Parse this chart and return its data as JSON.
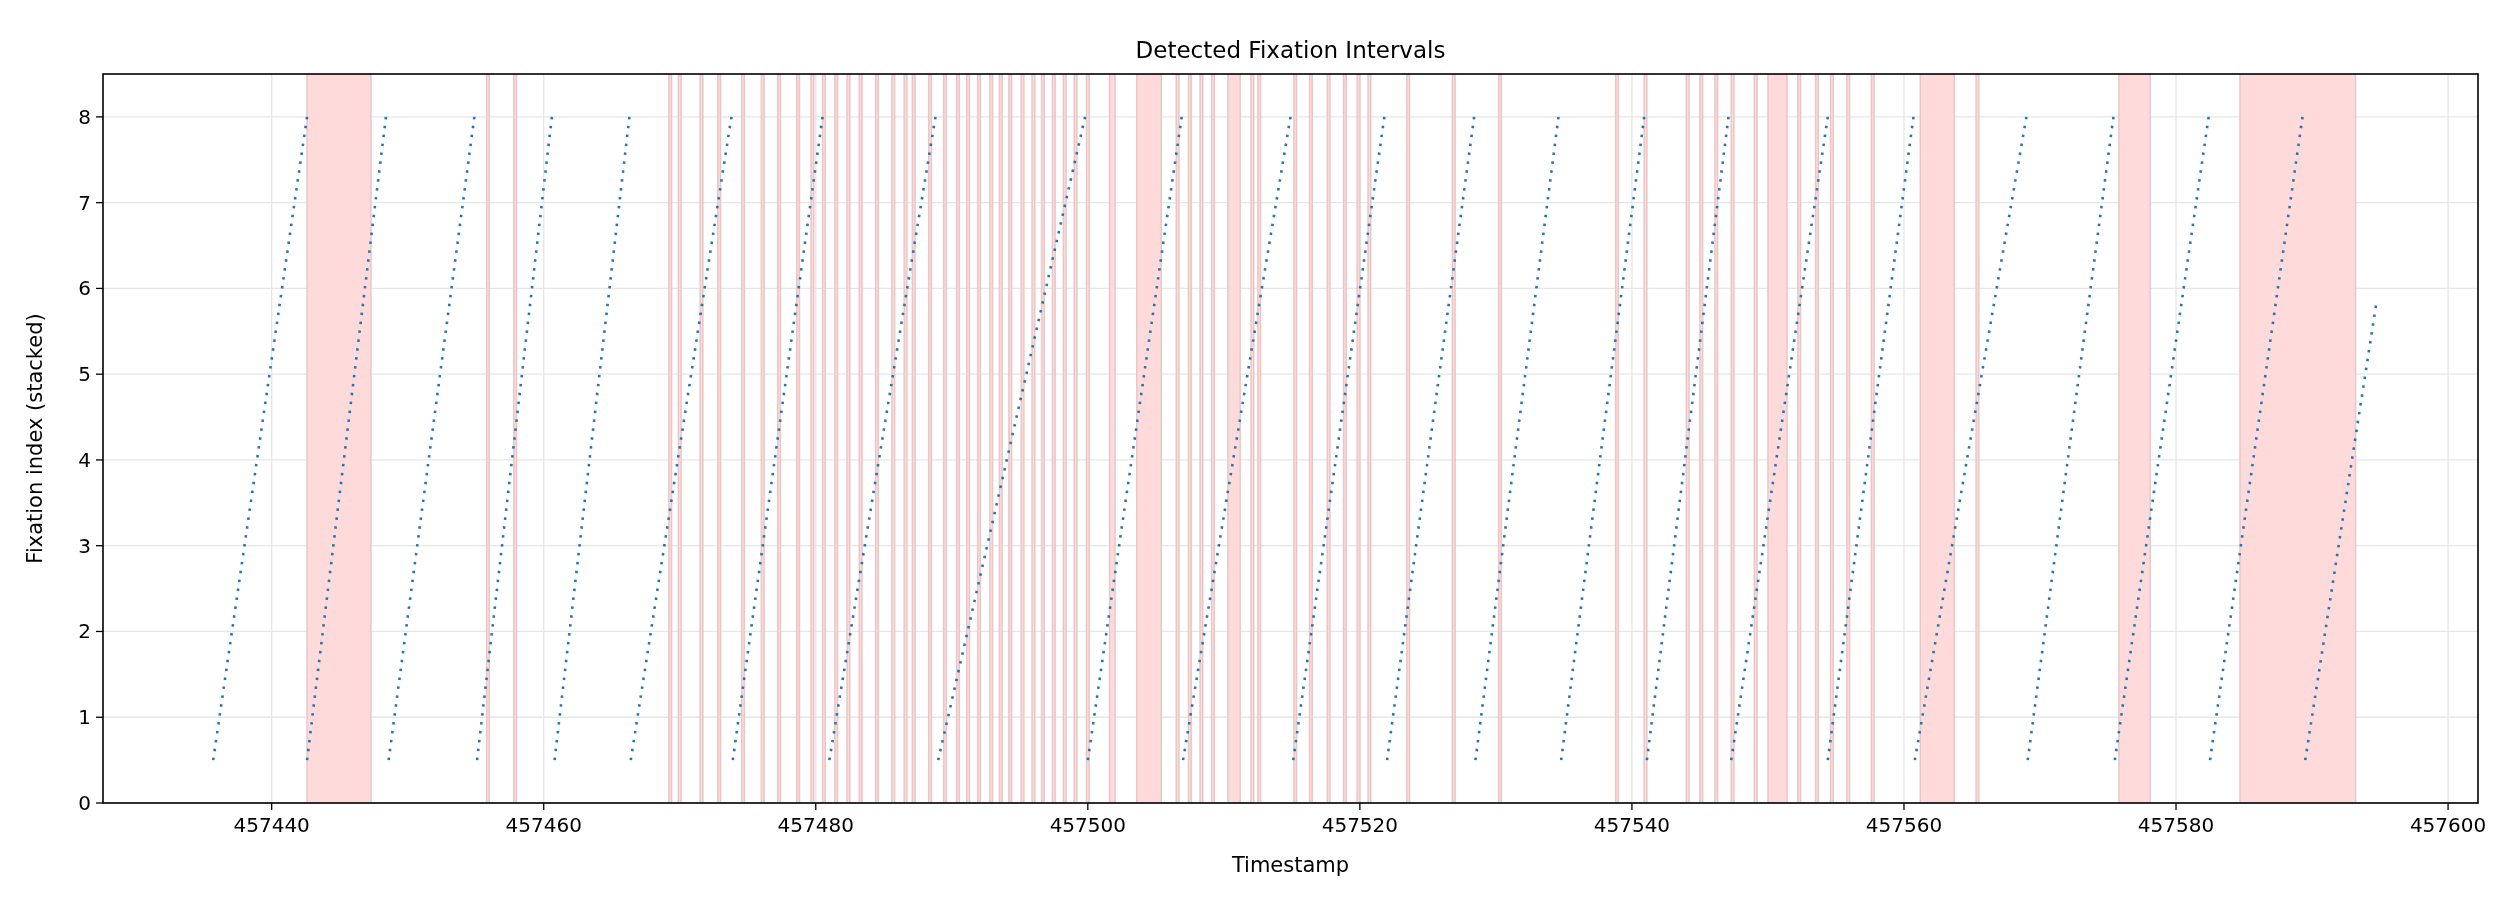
{
  "chart_data": {
    "type": "line",
    "title": "Detected Fixation Intervals",
    "xlabel": "Timestamp",
    "ylabel": "Fixation index (stacked)",
    "xlim": [
      457427.6,
      457602.2
    ],
    "xticks": [
      457440,
      457460,
      457480,
      457500,
      457520,
      457540,
      457560,
      457580,
      457600
    ],
    "ylim": [
      0,
      8.5
    ],
    "yticks": [
      0,
      1,
      2,
      3,
      4,
      5,
      6,
      7,
      8
    ],
    "grid": true,
    "line_style": "dotted",
    "marker": "none",
    "series": [
      {
        "color": "#1f77b4",
        "x": [
          457435.7,
          457442.6
        ],
        "values": [
          0.5,
          8
        ]
      },
      {
        "color": "#1f77b4",
        "x": [
          457442.6,
          457448.4
        ],
        "values": [
          0.5,
          8
        ]
      },
      {
        "color": "#1f77b4",
        "x": [
          457448.6,
          457454.9
        ],
        "values": [
          0.5,
          8
        ]
      },
      {
        "color": "#1f77b4",
        "x": [
          457455.1,
          457460.6
        ],
        "values": [
          0.5,
          8
        ]
      },
      {
        "color": "#1f77b4",
        "x": [
          457460.8,
          457466.3
        ],
        "values": [
          0.5,
          8
        ]
      },
      {
        "color": "#1f77b4",
        "x": [
          457466.4,
          457473.8
        ],
        "values": [
          0.5,
          8
        ]
      },
      {
        "color": "#1f77b4",
        "x": [
          457473.9,
          457480.5
        ],
        "values": [
          0.5,
          8
        ]
      },
      {
        "color": "#1f77b4",
        "x": [
          457481.0,
          457488.8
        ],
        "values": [
          0.5,
          8
        ]
      },
      {
        "color": "#1f77b4",
        "x": [
          457489.0,
          457499.8
        ],
        "values": [
          0.5,
          8
        ]
      },
      {
        "color": "#1f77b4",
        "x": [
          457500.0,
          457506.9
        ],
        "values": [
          0.5,
          8
        ]
      },
      {
        "color": "#1f77b4",
        "x": [
          457507.0,
          457514.9
        ],
        "values": [
          0.5,
          8
        ]
      },
      {
        "color": "#1f77b4",
        "x": [
          457515.1,
          457521.8
        ],
        "values": [
          0.5,
          8
        ]
      },
      {
        "color": "#1f77b4",
        "x": [
          457522.0,
          457528.4
        ],
        "values": [
          0.5,
          8
        ]
      },
      {
        "color": "#1f77b4",
        "x": [
          457528.5,
          457534.6
        ],
        "values": [
          0.5,
          8
        ]
      },
      {
        "color": "#1f77b4",
        "x": [
          457534.8,
          457540.9
        ],
        "values": [
          0.5,
          8
        ]
      },
      {
        "color": "#1f77b4",
        "x": [
          457541.1,
          457547.1
        ],
        "values": [
          0.5,
          8
        ]
      },
      {
        "color": "#1f77b4",
        "x": [
          457547.3,
          457554.4
        ],
        "values": [
          0.5,
          8
        ]
      },
      {
        "color": "#1f77b4",
        "x": [
          457554.4,
          457560.7
        ],
        "values": [
          0.5,
          8
        ]
      },
      {
        "color": "#1f77b4",
        "x": [
          457560.8,
          457569.0
        ],
        "values": [
          0.5,
          8
        ]
      },
      {
        "color": "#1f77b4",
        "x": [
          457569.1,
          457575.4
        ],
        "values": [
          0.5,
          8
        ]
      },
      {
        "color": "#1f77b4",
        "x": [
          457575.5,
          457582.4
        ],
        "values": [
          0.5,
          8
        ]
      },
      {
        "color": "#1f77b4",
        "x": [
          457582.5,
          457589.3
        ],
        "values": [
          0.5,
          8
        ]
      },
      {
        "color": "#1f77b4",
        "x": [
          457589.5,
          457594.7
        ],
        "values": [
          0.5,
          5.8
        ]
      }
    ],
    "bands": [
      {
        "axis": "x",
        "from": 457442.6,
        "to": 457447.3,
        "color": "#ffdada"
      },
      {
        "axis": "x",
        "from": 457455.8,
        "to": 457456.0,
        "color": "#ffdada"
      },
      {
        "axis": "x",
        "from": 457457.8,
        "to": 457458.0,
        "color": "#ffdada"
      },
      {
        "axis": "x",
        "from": 457469.2,
        "to": 457469.4,
        "color": "#ffdada"
      },
      {
        "axis": "x",
        "from": 457469.9,
        "to": 457470.1,
        "color": "#ffdada"
      },
      {
        "axis": "x",
        "from": 457471.5,
        "to": 457471.7,
        "color": "#ffdada"
      },
      {
        "axis": "x",
        "from": 457472.8,
        "to": 457473.0,
        "color": "#ffdada"
      },
      {
        "axis": "x",
        "from": 457474.55,
        "to": 457474.75,
        "color": "#ffdada"
      },
      {
        "axis": "x",
        "from": 457476.0,
        "to": 457476.2,
        "color": "#ffdada"
      },
      {
        "axis": "x",
        "from": 457477.2,
        "to": 457477.4,
        "color": "#ffdada"
      },
      {
        "axis": "x",
        "from": 457478.6,
        "to": 457478.8,
        "color": "#ffdada"
      },
      {
        "axis": "x",
        "from": 457479.65,
        "to": 457479.85,
        "color": "#ffdada"
      },
      {
        "axis": "x",
        "from": 457480.5,
        "to": 457480.7,
        "color": "#ffdada"
      },
      {
        "axis": "x",
        "from": 457481.4,
        "to": 457481.6,
        "color": "#ffdada"
      },
      {
        "axis": "x",
        "from": 457482.3,
        "to": 457482.5,
        "color": "#ffdada"
      },
      {
        "axis": "x",
        "from": 457483.2,
        "to": 457483.4,
        "color": "#ffdada"
      },
      {
        "axis": "x",
        "from": 457484.4,
        "to": 457484.6,
        "color": "#ffdada"
      },
      {
        "axis": "x",
        "from": 457485.6,
        "to": 457485.8,
        "color": "#ffdada"
      },
      {
        "axis": "x",
        "from": 457486.5,
        "to": 457486.7,
        "color": "#ffdada"
      },
      {
        "axis": "x",
        "from": 457487.1,
        "to": 457487.3,
        "color": "#ffdada"
      },
      {
        "axis": "x",
        "from": 457488.3,
        "to": 457488.5,
        "color": "#ffdada"
      },
      {
        "axis": "x",
        "from": 457489.4,
        "to": 457489.6,
        "color": "#ffdada"
      },
      {
        "axis": "x",
        "from": 457490.35,
        "to": 457490.55,
        "color": "#ffdada"
      },
      {
        "axis": "x",
        "from": 457491.1,
        "to": 457491.3,
        "color": "#ffdada"
      },
      {
        "axis": "x",
        "from": 457491.9,
        "to": 457492.1,
        "color": "#ffdada"
      },
      {
        "axis": "x",
        "from": 457492.8,
        "to": 457493.0,
        "color": "#ffdada"
      },
      {
        "axis": "x",
        "from": 457493.5,
        "to": 457493.7,
        "color": "#ffdada"
      },
      {
        "axis": "x",
        "from": 457494.2,
        "to": 457494.4,
        "color": "#ffdada"
      },
      {
        "axis": "x",
        "from": 457495.1,
        "to": 457495.3,
        "color": "#ffdada"
      },
      {
        "axis": "x",
        "from": 457495.9,
        "to": 457496.1,
        "color": "#ffdada"
      },
      {
        "axis": "x",
        "from": 457496.6,
        "to": 457496.8,
        "color": "#ffdada"
      },
      {
        "axis": "x",
        "from": 457497.4,
        "to": 457497.6,
        "color": "#ffdada"
      },
      {
        "axis": "x",
        "from": 457498.2,
        "to": 457498.4,
        "color": "#ffdada"
      },
      {
        "axis": "x",
        "from": 457499.0,
        "to": 457499.2,
        "color": "#ffdada"
      },
      {
        "axis": "x",
        "from": 457499.9,
        "to": 457500.1,
        "color": "#ffdada"
      },
      {
        "axis": "x",
        "from": 457501.6,
        "to": 457502.0,
        "color": "#ffdada"
      },
      {
        "axis": "x",
        "from": 457503.6,
        "to": 457505.4,
        "color": "#ffdada"
      },
      {
        "axis": "x",
        "from": 457506.5,
        "to": 457506.7,
        "color": "#ffdada"
      },
      {
        "axis": "x",
        "from": 457507.4,
        "to": 457507.6,
        "color": "#ffdada"
      },
      {
        "axis": "x",
        "from": 457508.25,
        "to": 457508.45,
        "color": "#ffdada"
      },
      {
        "axis": "x",
        "from": 457509.1,
        "to": 457509.3,
        "color": "#ffdada"
      },
      {
        "axis": "x",
        "from": 457510.3,
        "to": 457511.2,
        "color": "#ffdada"
      },
      {
        "axis": "x",
        "from": 457512.0,
        "to": 457512.2,
        "color": "#ffdada"
      },
      {
        "axis": "x",
        "from": 457512.5,
        "to": 457512.7,
        "color": "#ffdada"
      },
      {
        "axis": "x",
        "from": 457515.15,
        "to": 457515.35,
        "color": "#ffdada"
      },
      {
        "axis": "x",
        "from": 457516.3,
        "to": 457516.5,
        "color": "#ffdada"
      },
      {
        "axis": "x",
        "from": 457517.6,
        "to": 457517.8,
        "color": "#ffdada"
      },
      {
        "axis": "x",
        "from": 457518.8,
        "to": 457519.0,
        "color": "#ffdada"
      },
      {
        "axis": "x",
        "from": 457519.8,
        "to": 457520.0,
        "color": "#ffdada"
      },
      {
        "axis": "x",
        "from": 457520.6,
        "to": 457520.8,
        "color": "#ffdada"
      },
      {
        "axis": "x",
        "from": 457523.45,
        "to": 457523.65,
        "color": "#ffdada"
      },
      {
        "axis": "x",
        "from": 457526.8,
        "to": 457527.0,
        "color": "#ffdada"
      },
      {
        "axis": "x",
        "from": 457530.2,
        "to": 457530.4,
        "color": "#ffdada"
      },
      {
        "axis": "x",
        "from": 457538.8,
        "to": 457539.0,
        "color": "#ffdada"
      },
      {
        "axis": "x",
        "from": 457540.9,
        "to": 457541.1,
        "color": "#ffdada"
      },
      {
        "axis": "x",
        "from": 457544.0,
        "to": 457544.2,
        "color": "#ffdada"
      },
      {
        "axis": "x",
        "from": 457545.0,
        "to": 457545.2,
        "color": "#ffdada"
      },
      {
        "axis": "x",
        "from": 457546.1,
        "to": 457546.3,
        "color": "#ffdada"
      },
      {
        "axis": "x",
        "from": 457547.3,
        "to": 457547.5,
        "color": "#ffdada"
      },
      {
        "axis": "x",
        "from": 457549.0,
        "to": 457549.2,
        "color": "#ffdada"
      },
      {
        "axis": "x",
        "from": 457550.0,
        "to": 457551.4,
        "color": "#ffdada"
      },
      {
        "axis": "x",
        "from": 457552.2,
        "to": 457552.4,
        "color": "#ffdada"
      },
      {
        "axis": "x",
        "from": 457553.5,
        "to": 457553.7,
        "color": "#ffdada"
      },
      {
        "axis": "x",
        "from": 457554.6,
        "to": 457554.8,
        "color": "#ffdada"
      },
      {
        "axis": "x",
        "from": 457555.8,
        "to": 457556.0,
        "color": "#ffdada"
      },
      {
        "axis": "x",
        "from": 457557.6,
        "to": 457557.8,
        "color": "#ffdada"
      },
      {
        "axis": "x",
        "from": 457561.2,
        "to": 457563.7,
        "color": "#ffdada"
      },
      {
        "axis": "x",
        "from": 457565.3,
        "to": 457565.5,
        "color": "#ffdada"
      },
      {
        "axis": "x",
        "from": 457575.8,
        "to": 457578.1,
        "color": "#ffdada"
      },
      {
        "axis": "x",
        "from": 457584.7,
        "to": 457593.2,
        "color": "#ffdada"
      }
    ]
  }
}
